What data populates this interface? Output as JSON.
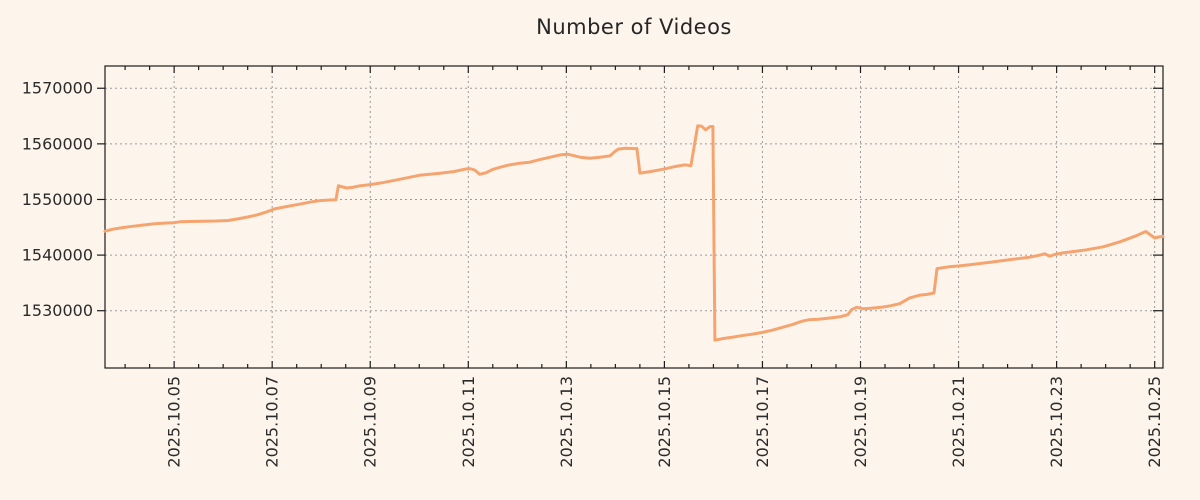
{
  "chart_data": {
    "type": "line",
    "title": "Number of Videos",
    "xlabel": "",
    "ylabel": "",
    "legend": "none",
    "grid": "dotted",
    "xlim": [
      3.59,
      25.17
    ],
    "ylim": [
      1519700,
      1574000
    ],
    "x_axis_note": "dates in October 2025, fractional day of month",
    "x_ticks": [
      {
        "day": 5,
        "label": "2025.10.05"
      },
      {
        "day": 7,
        "label": "2025.10.07"
      },
      {
        "day": 9,
        "label": "2025.10.09"
      },
      {
        "day": 11,
        "label": "2025.10.11"
      },
      {
        "day": 13,
        "label": "2025.10.13"
      },
      {
        "day": 15,
        "label": "2025.10.15"
      },
      {
        "day": 17,
        "label": "2025.10.17"
      },
      {
        "day": 19,
        "label": "2025.10.19"
      },
      {
        "day": 21,
        "label": "2025.10.21"
      },
      {
        "day": 23,
        "label": "2025.10.23"
      },
      {
        "day": 25,
        "label": "2025.10.25"
      }
    ],
    "minor_x_tick_step_days": 0.5,
    "y_ticks": [
      1530000,
      1540000,
      1550000,
      1560000,
      1570000
    ],
    "colors": {
      "background": "#fdf5ec",
      "line": "#f5a470",
      "grid": "#9b9b9b",
      "axis": "#1c1c1c",
      "tick_label": "#2b2b2b",
      "title": "#262626"
    },
    "series": [
      {
        "name": "Number of Videos",
        "points": [
          [
            3.59,
            1544300
          ],
          [
            3.75,
            1544650
          ],
          [
            3.95,
            1544950
          ],
          [
            4.15,
            1545180
          ],
          [
            4.4,
            1545430
          ],
          [
            4.6,
            1545630
          ],
          [
            4.8,
            1545750
          ],
          [
            5.0,
            1545820
          ],
          [
            5.12,
            1545990
          ],
          [
            5.3,
            1546040
          ],
          [
            5.6,
            1546090
          ],
          [
            5.85,
            1546130
          ],
          [
            6.1,
            1546220
          ],
          [
            6.3,
            1546500
          ],
          [
            6.5,
            1546850
          ],
          [
            6.7,
            1547250
          ],
          [
            6.9,
            1547800
          ],
          [
            7.05,
            1548300
          ],
          [
            7.3,
            1548740
          ],
          [
            7.6,
            1549230
          ],
          [
            7.8,
            1549590
          ],
          [
            8.0,
            1549820
          ],
          [
            8.18,
            1549900
          ],
          [
            8.3,
            1549950
          ],
          [
            8.35,
            1552470
          ],
          [
            8.44,
            1552250
          ],
          [
            8.52,
            1552060
          ],
          [
            8.64,
            1552180
          ],
          [
            8.8,
            1552470
          ],
          [
            9.0,
            1552680
          ],
          [
            9.25,
            1553010
          ],
          [
            9.6,
            1553620
          ],
          [
            10.0,
            1554350
          ],
          [
            10.4,
            1554690
          ],
          [
            10.7,
            1555010
          ],
          [
            10.95,
            1555480
          ],
          [
            11.05,
            1555520
          ],
          [
            11.13,
            1555300
          ],
          [
            11.23,
            1554520
          ],
          [
            11.36,
            1554800
          ],
          [
            11.5,
            1555400
          ],
          [
            11.65,
            1555810
          ],
          [
            11.82,
            1556180
          ],
          [
            12.05,
            1556530
          ],
          [
            12.25,
            1556710
          ],
          [
            12.45,
            1557150
          ],
          [
            12.67,
            1557610
          ],
          [
            12.87,
            1558020
          ],
          [
            13.03,
            1558150
          ],
          [
            13.28,
            1557610
          ],
          [
            13.48,
            1557430
          ],
          [
            13.69,
            1557610
          ],
          [
            13.89,
            1557840
          ],
          [
            13.99,
            1558620
          ],
          [
            14.06,
            1559050
          ],
          [
            14.2,
            1559200
          ],
          [
            14.4,
            1559150
          ],
          [
            14.44,
            1559180
          ],
          [
            14.5,
            1554750
          ],
          [
            14.71,
            1555020
          ],
          [
            14.91,
            1555330
          ],
          [
            15.02,
            1555510
          ],
          [
            15.21,
            1555920
          ],
          [
            15.42,
            1556230
          ],
          [
            15.54,
            1556060
          ],
          [
            15.68,
            1563240
          ],
          [
            15.76,
            1563160
          ],
          [
            15.84,
            1562520
          ],
          [
            15.93,
            1563110
          ],
          [
            15.99,
            1563120
          ],
          [
            16.03,
            1524700
          ],
          [
            16.2,
            1525000
          ],
          [
            16.4,
            1525250
          ],
          [
            16.57,
            1525500
          ],
          [
            16.8,
            1525800
          ],
          [
            17.0,
            1526100
          ],
          [
            17.2,
            1526500
          ],
          [
            17.4,
            1527000
          ],
          [
            17.6,
            1527480
          ],
          [
            17.8,
            1528090
          ],
          [
            17.95,
            1528380
          ],
          [
            18.15,
            1528460
          ],
          [
            18.4,
            1528700
          ],
          [
            18.6,
            1528950
          ],
          [
            18.74,
            1529280
          ],
          [
            18.82,
            1530180
          ],
          [
            18.92,
            1530610
          ],
          [
            19.05,
            1530370
          ],
          [
            19.22,
            1530450
          ],
          [
            19.42,
            1530620
          ],
          [
            19.62,
            1530910
          ],
          [
            19.8,
            1531270
          ],
          [
            20.0,
            1532290
          ],
          [
            20.2,
            1532780
          ],
          [
            20.36,
            1532930
          ],
          [
            20.5,
            1533190
          ],
          [
            20.56,
            1537570
          ],
          [
            20.8,
            1537900
          ],
          [
            21.02,
            1538050
          ],
          [
            21.25,
            1538300
          ],
          [
            21.65,
            1538730
          ],
          [
            22.05,
            1539190
          ],
          [
            22.45,
            1539630
          ],
          [
            22.65,
            1539990
          ],
          [
            22.76,
            1540230
          ],
          [
            22.86,
            1539810
          ],
          [
            22.96,
            1540110
          ],
          [
            23.15,
            1540430
          ],
          [
            23.55,
            1540870
          ],
          [
            23.95,
            1541500
          ],
          [
            24.3,
            1542400
          ],
          [
            24.6,
            1543400
          ],
          [
            24.82,
            1544250
          ],
          [
            25.0,
            1543070
          ],
          [
            25.08,
            1543260
          ],
          [
            25.17,
            1543380
          ]
        ]
      }
    ]
  }
}
